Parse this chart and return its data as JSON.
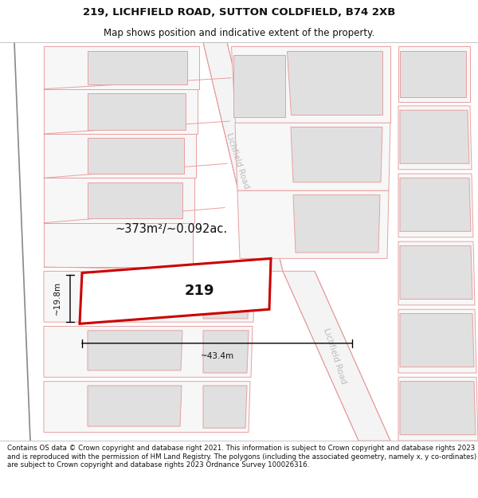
{
  "title_line1": "219, LICHFIELD ROAD, SUTTON COLDFIELD, B74 2XB",
  "title_line2": "Map shows position and indicative extent of the property.",
  "footer_text": "Contains OS data © Crown copyright and database right 2021. This information is subject to Crown copyright and database rights 2023 and is reproduced with the permission of HM Land Registry. The polygons (including the associated geometry, namely x, y co-ordinates) are subject to Crown copyright and database rights 2023 Ordnance Survey 100026316.",
  "area_label": "~373m²/~0.092ac.",
  "number_label": "219",
  "width_label": "~43.4m",
  "height_label": "~19.8m",
  "road_label_top": "Lichfield Road",
  "road_label_bottom": "Lichfield Road",
  "map_bg": "#f7f7f7",
  "building_fill": "#e0e0e0",
  "building_stroke": "#e8a0a0",
  "road_stroke": "#e8a0a0",
  "highlight_stroke": "#cc0000",
  "title_fontsize": 9.5,
  "subtitle_fontsize": 8.5,
  "footer_fontsize": 6.2,
  "road_lw": 0.7,
  "bld_lw": 0.7
}
